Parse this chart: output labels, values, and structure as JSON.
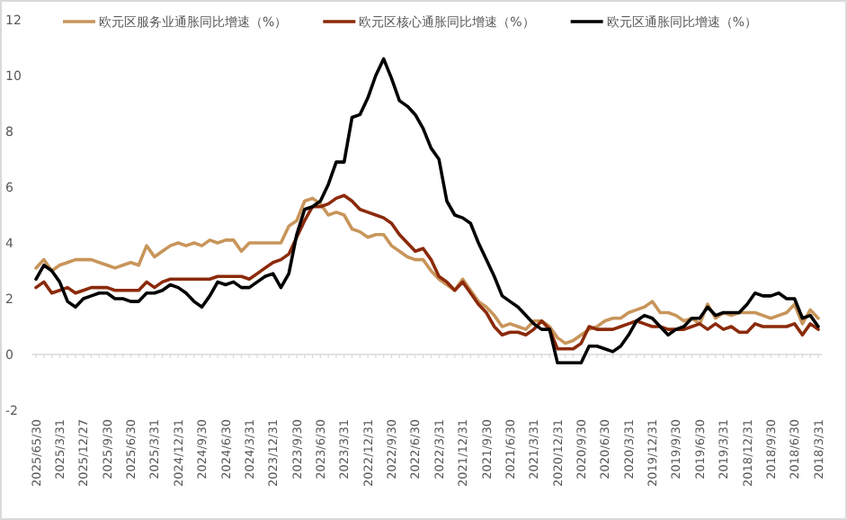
{
  "chart_data": {
    "type": "line",
    "legend": "top",
    "ylim": [
      -2,
      12
    ],
    "yticks": [
      -2,
      0,
      2,
      4,
      6,
      8,
      10,
      12
    ],
    "categories": [
      "2025/65/30",
      null,
      null,
      "2025/3/31",
      null,
      null,
      "2025/12/27",
      null,
      null,
      "2025/9/30",
      null,
      null,
      "2025/6/30",
      null,
      null,
      "2025/3/31",
      null,
      null,
      "2024/12/31",
      null,
      null,
      "2024/9/30",
      null,
      null,
      "2024/6/30",
      null,
      null,
      "2024/3/31",
      null,
      null,
      "2023/12/31",
      null,
      null,
      "2023/9/30",
      null,
      null,
      "2023/6/30",
      null,
      null,
      "2023/3/31",
      null,
      null,
      "2022/12/31",
      null,
      null,
      "2022/9/30",
      null,
      null,
      "2022/6/30",
      null,
      null,
      "2022/3/31",
      null,
      null,
      "2021/12/31",
      null,
      null,
      "2021/9/30",
      null,
      null,
      "2021/6/30",
      null,
      null,
      "2021/3/31",
      null,
      null,
      "2020/12/31",
      null,
      null,
      "2020/9/30",
      null,
      null,
      "2020/6/30",
      null,
      null,
      "2020/3/31",
      null,
      null,
      "2019/12/31",
      null,
      null,
      "2019/9/30",
      null,
      null,
      "2019/6/30",
      null,
      null,
      "2019/3/31",
      null,
      null,
      "2018/12/31",
      null,
      null,
      "2018/9/30",
      null,
      null,
      "2018/6/30",
      null,
      null,
      "2018/3/31"
    ],
    "series": [
      {
        "name": "欧元区服务业通胀同比增速（%）",
        "color": "#c8955a",
        "values": [
          3.1,
          3.4,
          3.0,
          3.2,
          3.3,
          3.4,
          3.4,
          3.4,
          3.3,
          3.2,
          3.1,
          3.2,
          3.3,
          3.2,
          3.9,
          3.5,
          3.7,
          3.9,
          4.0,
          3.9,
          4.0,
          3.9,
          4.1,
          4.0,
          4.1,
          4.1,
          3.7,
          4.0,
          4.0,
          4.0,
          4.0,
          4.0,
          4.6,
          4.8,
          5.5,
          5.6,
          5.4,
          5.0,
          5.1,
          5.0,
          4.5,
          4.4,
          4.2,
          4.3,
          4.3,
          3.9,
          3.7,
          3.5,
          3.4,
          3.4,
          3.0,
          2.7,
          2.5,
          2.3,
          2.7,
          2.3,
          1.9,
          1.7,
          1.4,
          1.0,
          1.1,
          1.0,
          0.9,
          1.2,
          1.2,
          1.0,
          0.6,
          0.4,
          0.5,
          0.7,
          0.9,
          1.0,
          1.2,
          1.3,
          1.3,
          1.5,
          1.6,
          1.7,
          1.9,
          1.5,
          1.5,
          1.4,
          1.2,
          1.3,
          1.1,
          1.8,
          1.3,
          1.5,
          1.4,
          1.5,
          1.5,
          1.5,
          1.4,
          1.3,
          1.4,
          1.5,
          1.8,
          1.1,
          1.6,
          1.3
        ]
      },
      {
        "name": "欧元区核心通胀同比增速（%）",
        "color": "#8b2a0a",
        "values": [
          2.4,
          2.6,
          2.2,
          2.3,
          2.4,
          2.2,
          2.3,
          2.4,
          2.4,
          2.4,
          2.3,
          2.3,
          2.3,
          2.3,
          2.6,
          2.4,
          2.6,
          2.7,
          2.7,
          2.7,
          2.7,
          2.7,
          2.7,
          2.8,
          2.8,
          2.8,
          2.8,
          2.7,
          2.9,
          3.1,
          3.3,
          3.4,
          3.6,
          4.2,
          4.8,
          5.3,
          5.3,
          5.4,
          5.6,
          5.7,
          5.5,
          5.2,
          5.1,
          5.0,
          4.9,
          4.7,
          4.3,
          4.0,
          3.7,
          3.8,
          3.4,
          2.8,
          2.6,
          2.3,
          2.6,
          2.2,
          1.8,
          1.5,
          1.0,
          0.7,
          0.8,
          0.8,
          0.7,
          0.9,
          1.2,
          0.9,
          0.2,
          0.2,
          0.2,
          0.4,
          1.0,
          0.9,
          0.9,
          0.9,
          1.0,
          1.1,
          1.2,
          1.1,
          1.0,
          1.0,
          0.9,
          0.9,
          0.9,
          1.0,
          1.1,
          0.9,
          1.1,
          0.9,
          1.0,
          0.8,
          0.8,
          1.1,
          1.0,
          1.0,
          1.0,
          1.0,
          1.1,
          0.7,
          1.1,
          0.9
        ]
      },
      {
        "name": "欧元区通胀同比增速（%）",
        "color": "#000000",
        "values": [
          2.7,
          3.2,
          3.0,
          2.6,
          1.9,
          1.7,
          2.0,
          2.1,
          2.2,
          2.2,
          2.0,
          2.0,
          1.9,
          1.9,
          2.2,
          2.2,
          2.3,
          2.5,
          2.4,
          2.2,
          1.9,
          1.7,
          2.1,
          2.6,
          2.5,
          2.6,
          2.4,
          2.4,
          2.6,
          2.8,
          2.9,
          2.4,
          2.9,
          4.3,
          5.2,
          5.3,
          5.5,
          6.1,
          6.9,
          6.9,
          8.5,
          8.6,
          9.2,
          10.0,
          10.6,
          9.9,
          9.1,
          8.9,
          8.6,
          8.1,
          7.4,
          7.0,
          5.5,
          5.0,
          4.9,
          4.7,
          4.0,
          3.4,
          2.8,
          2.1,
          1.9,
          1.7,
          1.4,
          1.1,
          0.9,
          0.9,
          -0.3,
          -0.3,
          -0.3,
          -0.3,
          0.3,
          0.3,
          0.2,
          0.1,
          0.3,
          0.7,
          1.2,
          1.4,
          1.3,
          1.0,
          0.7,
          0.9,
          1.0,
          1.3,
          1.3,
          1.7,
          1.4,
          1.5,
          1.5,
          1.5,
          1.8,
          2.2,
          2.1,
          2.1,
          2.2,
          2.0,
          2.0,
          1.3,
          1.4,
          1.0
        ]
      }
    ]
  }
}
